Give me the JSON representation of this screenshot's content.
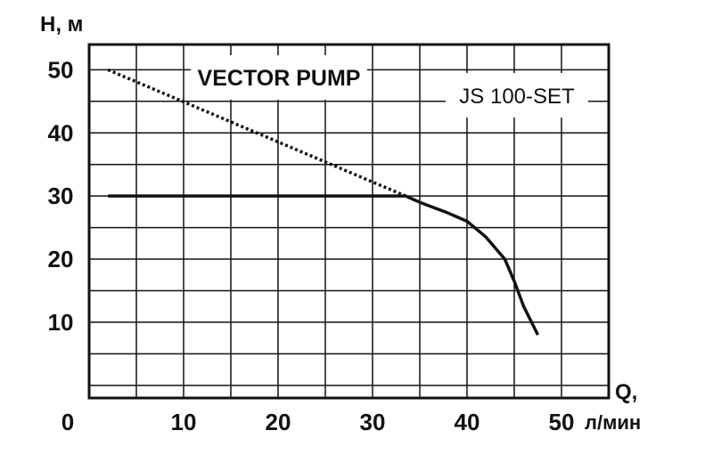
{
  "chart_data": {
    "type": "line",
    "title": "VECTOR PUMP",
    "model_label": "JS 100-SET",
    "ylabel": "H, м",
    "xlabel": "Q,",
    "x_unit": "л/мин",
    "origin_label": "0",
    "xlim": [
      0,
      55
    ],
    "ylim": [
      -2,
      54
    ],
    "x_ticks": [
      "10",
      "20",
      "30",
      "40",
      "50"
    ],
    "y_ticks": [
      "10",
      "20",
      "30",
      "40",
      "50"
    ],
    "grid": true,
    "series": [
      {
        "style": "solid",
        "x": [
          2,
          10,
          20,
          30,
          33.5,
          35,
          38,
          40,
          42,
          44,
          45,
          46,
          47.5
        ],
        "y": [
          30,
          30,
          30,
          30,
          30,
          29,
          27.3,
          26,
          23.5,
          20,
          16.5,
          12.5,
          8
        ]
      },
      {
        "style": "dotted",
        "x": [
          2,
          33.5
        ],
        "y": [
          50,
          30
        ]
      }
    ],
    "colors": {
      "line": "#111111",
      "grid": "#111111"
    }
  }
}
